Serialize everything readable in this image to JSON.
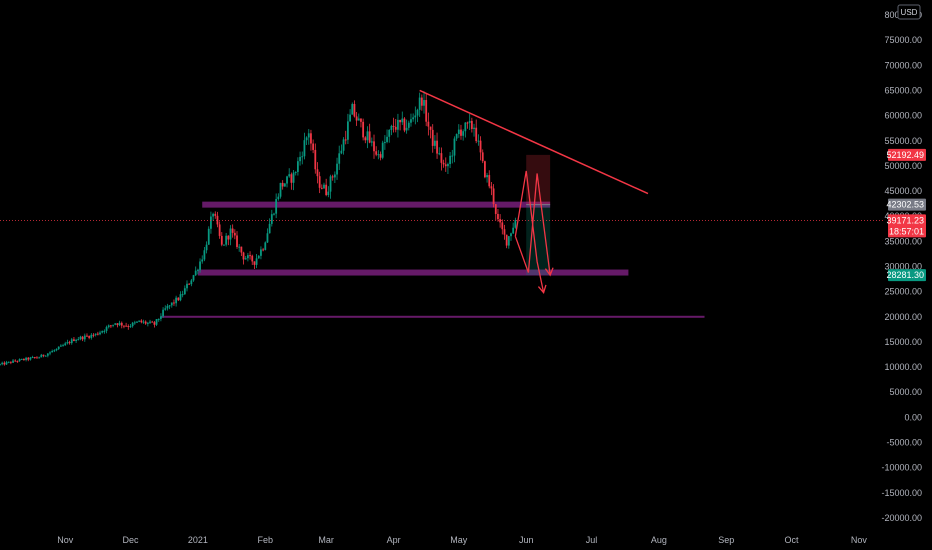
{
  "chart_data": {
    "type": "candlestick",
    "currency": "USD",
    "y_axis": {
      "ylim": [
        -22000,
        82000
      ],
      "ticks": [
        80000,
        75000,
        70000,
        65000,
        60000,
        55000,
        50000,
        45000,
        40000,
        35000,
        30000,
        25000,
        20000,
        15000,
        10000,
        5000,
        0,
        -5000,
        -10000,
        -15000,
        -20000
      ],
      "tick_labels": [
        "80000.00",
        "75000.00",
        "70000.00",
        "65000.00",
        "60000.00",
        "55000.00",
        "50000.00",
        "45000.00",
        "40000.00",
        "35000.00",
        "30000.00",
        "25000.00",
        "20000.00",
        "15000.00",
        "10000.00",
        "5000.00",
        "0.00",
        "-5000.00",
        "-10000.00",
        "-15000.00",
        "-20000.00"
      ]
    },
    "x_axis": {
      "xlim": [
        "2020-10-02",
        "2021-11-13"
      ],
      "ticks": [
        {
          "date": "2020-11-01",
          "label": "Nov"
        },
        {
          "date": "2020-12-01",
          "label": "Dec"
        },
        {
          "date": "2021-01-01",
          "label": "2021"
        },
        {
          "date": "2021-02-01",
          "label": "Feb"
        },
        {
          "date": "2021-03-01",
          "label": "Mar"
        },
        {
          "date": "2021-04-01",
          "label": "Apr"
        },
        {
          "date": "2021-05-01",
          "label": "May"
        },
        {
          "date": "2021-06-01",
          "label": "Jun"
        },
        {
          "date": "2021-07-01",
          "label": "Jul"
        },
        {
          "date": "2021-08-01",
          "label": "Aug"
        },
        {
          "date": "2021-09-01",
          "label": "Sep"
        },
        {
          "date": "2021-10-01",
          "label": "Oct"
        },
        {
          "date": "2021-11-01",
          "label": "Nov"
        }
      ]
    },
    "price_path": [
      [
        "2020-10-02",
        10500
      ],
      [
        "2020-10-10",
        11300
      ],
      [
        "2020-10-20",
        12000
      ],
      [
        "2020-10-28",
        13500
      ],
      [
        "2020-11-05",
        15500
      ],
      [
        "2020-11-15",
        16500
      ],
      [
        "2020-11-24",
        18800
      ],
      [
        "2020-11-30",
        18200
      ],
      [
        "2020-12-05",
        19000
      ],
      [
        "2020-12-12",
        18500
      ],
      [
        "2020-12-17",
        21500
      ],
      [
        "2020-12-24",
        24000
      ],
      [
        "2020-12-31",
        29000
      ],
      [
        "2021-01-04",
        33000
      ],
      [
        "2021-01-08",
        41000
      ],
      [
        "2021-01-12",
        34000
      ],
      [
        "2021-01-16",
        37000
      ],
      [
        "2021-01-22",
        32000
      ],
      [
        "2021-01-27",
        31000
      ],
      [
        "2021-01-31",
        34000
      ],
      [
        "2021-02-08",
        46000
      ],
      [
        "2021-02-14",
        48000
      ],
      [
        "2021-02-21",
        57000
      ],
      [
        "2021-02-25",
        47000
      ],
      [
        "2021-03-01",
        45000
      ],
      [
        "2021-03-05",
        49000
      ],
      [
        "2021-03-13",
        61000
      ],
      [
        "2021-03-18",
        57000
      ],
      [
        "2021-03-25",
        52000
      ],
      [
        "2021-04-01",
        58000
      ],
      [
        "2021-04-08",
        58000
      ],
      [
        "2021-04-14",
        63500
      ],
      [
        "2021-04-18",
        56000
      ],
      [
        "2021-04-25",
        49000
      ],
      [
        "2021-05-01",
        57000
      ],
      [
        "2021-05-08",
        58000
      ],
      [
        "2021-05-12",
        50000
      ],
      [
        "2021-05-16",
        45000
      ],
      [
        "2021-05-19",
        39000
      ],
      [
        "2021-05-23",
        35000
      ],
      [
        "2021-05-27",
        39171
      ]
    ],
    "levels": [
      {
        "price": 42302.53,
        "from": "2021-01-03",
        "to": "2021-06-12",
        "label": "42302.53"
      },
      {
        "price": 28800,
        "from": "2021-01-01",
        "to": "2021-07-18"
      },
      {
        "price": 20000,
        "from": "2020-12-15",
        "to": "2021-08-22"
      }
    ],
    "trendline": {
      "from": [
        "2021-04-13",
        65000
      ],
      "to": [
        "2021-07-27",
        44500
      ]
    },
    "position": {
      "start": "2021-06-01",
      "end": "2021-06-12",
      "entry": 42302.53,
      "stop": 52192.49,
      "target": 28281.3
    },
    "projection": [
      [
        "2021-05-27",
        36000
      ],
      [
        "2021-06-02",
        28800
      ],
      [
        "2021-06-06",
        48500
      ],
      [
        "2021-06-12",
        28281
      ]
    ],
    "projection2": [
      [
        "2021-05-27",
        36000
      ],
      [
        "2021-06-01",
        49000
      ],
      [
        "2021-06-06",
        31000
      ],
      [
        "2021-06-09",
        24800
      ]
    ],
    "last_price": {
      "price": 39171.23,
      "label": "39171.23",
      "countdown": "18:57:01"
    },
    "price_labels": [
      {
        "price": 52192.49,
        "label": "52192.49",
        "color": "#f23645"
      },
      {
        "price": 42302.53,
        "label": "42302.53",
        "color": "#787b86"
      },
      {
        "price": 28281.3,
        "label": "28281.30",
        "color": "#089981"
      }
    ]
  }
}
